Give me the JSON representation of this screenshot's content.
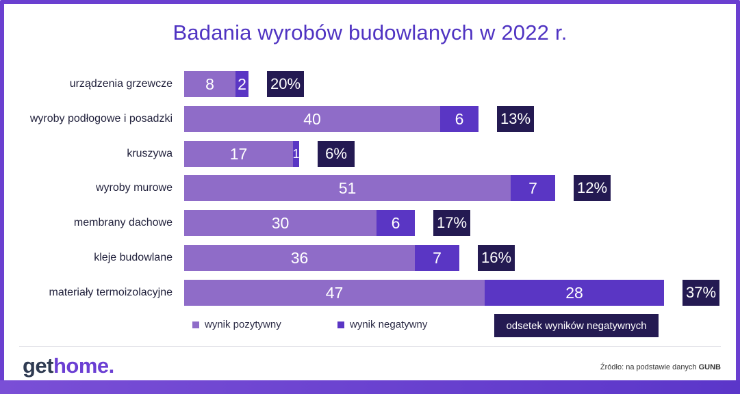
{
  "title": "Badania wyrobów budowlanych w 2022 r.",
  "chart_data": {
    "type": "bar",
    "orientation": "horizontal",
    "stacked": true,
    "categories": [
      "urządzenia grzewcze",
      "wyroby podłogowe i posadzki",
      "kruszywa",
      "wyroby murowe",
      "membrany dachowe",
      "kleje budowlane",
      "materiały termoizolacyjne"
    ],
    "series": [
      {
        "name": "wynik pozytywny",
        "values": [
          8,
          40,
          17,
          51,
          30,
          36,
          47
        ],
        "color": "#8f6cc8"
      },
      {
        "name": "wynik negatywny",
        "values": [
          2,
          6,
          1,
          7,
          6,
          7,
          28
        ],
        "color": "#5a36c4"
      }
    ],
    "negative_share_labels": [
      "20%",
      "13%",
      "6%",
      "12%",
      "17%",
      "16%",
      "37%"
    ],
    "negative_share_name": "odsetek wyników negatywnych",
    "negative_share_color": "#241a52",
    "legend_position": "bottom"
  },
  "brand": {
    "logo_part1": "get",
    "logo_part2": "home."
  },
  "source": {
    "prefix": "Źródło: na podstawie danych ",
    "org": "GUNB"
  }
}
